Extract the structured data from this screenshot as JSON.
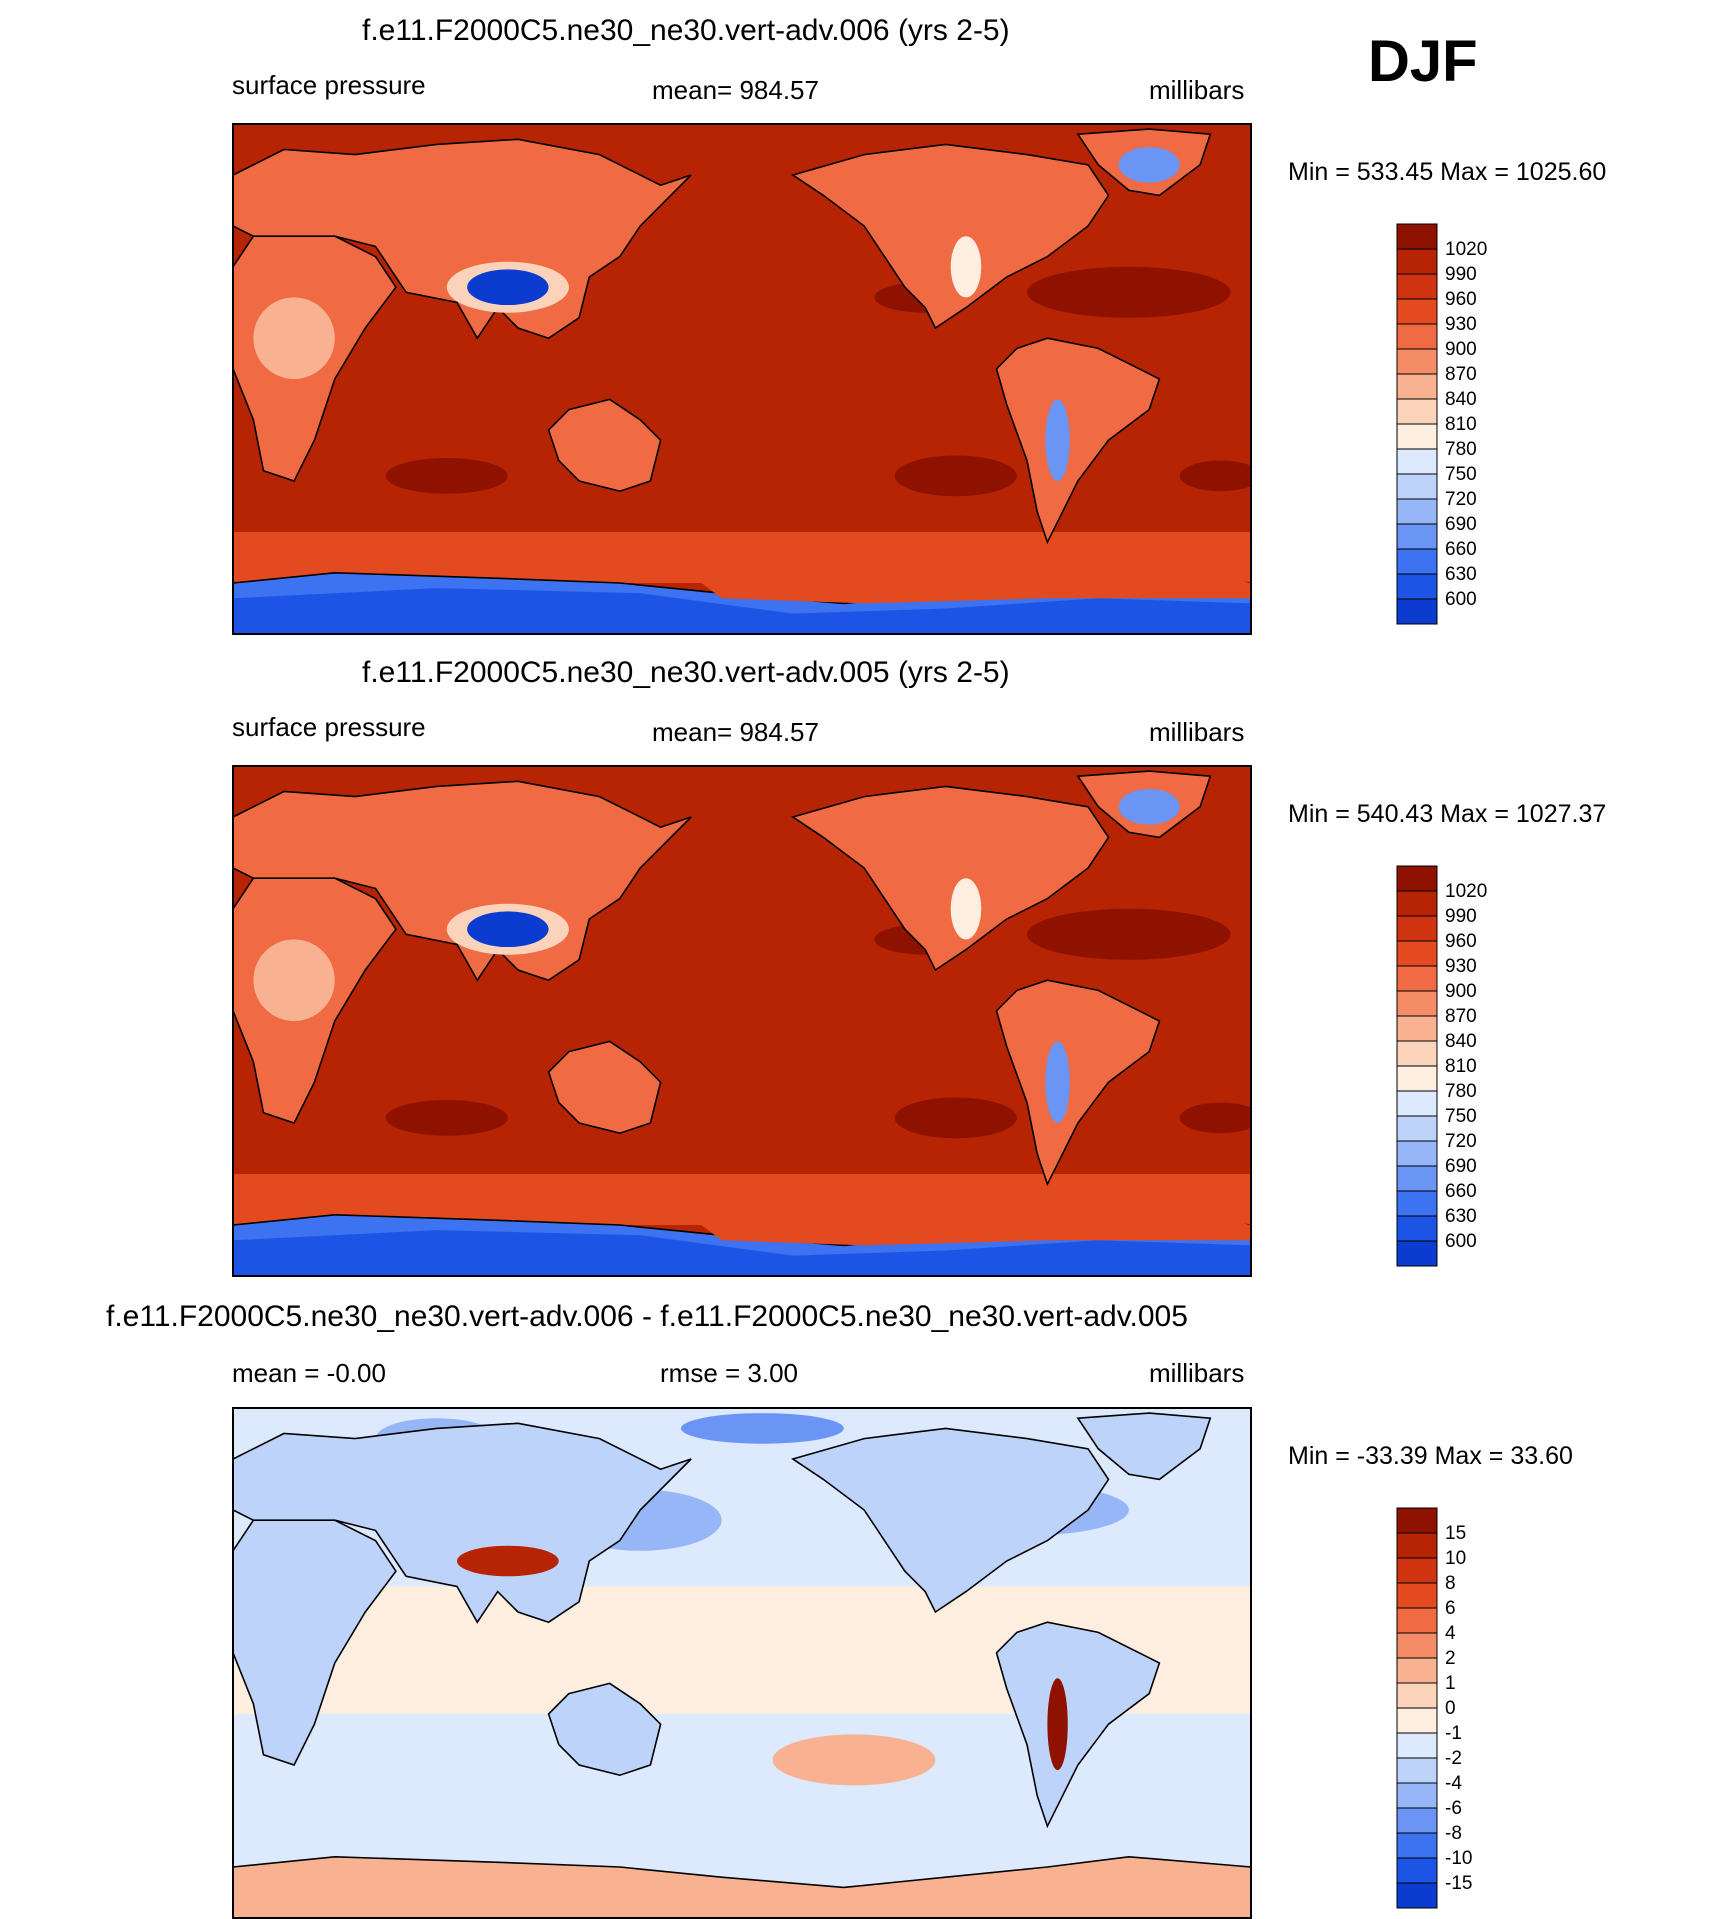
{
  "season": "DJF",
  "palettes": {
    "abs": [
      "#00007f",
      "#0a23a8",
      "#0c3bd0",
      "#1c55e6",
      "#3d72f0",
      "#6a95f5",
      "#97b6f8",
      "#bed3fa",
      "#dde9fc",
      "#fdeee0",
      "#fbd3bb",
      "#f8b292",
      "#f58c68",
      "#f06a43",
      "#e44a20",
      "#cf3310",
      "#b62404",
      "#8f1200"
    ],
    "diff": [
      "#00007f",
      "#0a23a8",
      "#0c3bd0",
      "#1c55e6",
      "#3d72f0",
      "#6a95f5",
      "#97b6f8",
      "#bed3fa",
      "#dde9fc",
      "#fdeee0",
      "#fbd3bb",
      "#f8b292",
      "#f58c68",
      "#f06a43",
      "#e44a20",
      "#cf3310",
      "#b62404",
      "#8f1200"
    ]
  },
  "chart_data": [
    {
      "type": "heatmap",
      "title": "f.e11.F2000C5.ne30_ne30.vert-adv.006 (yrs 2-5)",
      "left_label": "surface pressure",
      "center_label": "mean= 984.57",
      "right_label": "millibars",
      "minmax": "Min = 533.45 Max = 1025.60",
      "colorbar_labels": [
        "1020",
        "990",
        "960",
        "930",
        "900",
        "870",
        "840",
        "810",
        "780",
        "750",
        "720",
        "690",
        "660",
        "630",
        "600"
      ],
      "mean": 984.57,
      "min": 533.45,
      "max": 1025.6
    },
    {
      "type": "heatmap",
      "title": "f.e11.F2000C5.ne30_ne30.vert-adv.005 (yrs 2-5)",
      "left_label": "surface pressure",
      "center_label": "mean= 984.57",
      "right_label": "millibars",
      "minmax": "Min = 540.43 Max = 1027.37",
      "colorbar_labels": [
        "1020",
        "990",
        "960",
        "930",
        "900",
        "870",
        "840",
        "810",
        "780",
        "750",
        "720",
        "690",
        "660",
        "630",
        "600"
      ],
      "mean": 984.57,
      "min": 540.43,
      "max": 1027.37
    },
    {
      "type": "heatmap",
      "title": "f.e11.F2000C5.ne30_ne30.vert-adv.006 - f.e11.F2000C5.ne30_ne30.vert-adv.005",
      "left_label": "mean =  -0.00",
      "center_label": "rmse =   3.00",
      "right_label": "millibars",
      "minmax": "Min = -33.39 Max =  33.60",
      "colorbar_labels": [
        "15",
        "10",
        "8",
        "6",
        "4",
        "2",
        "1",
        "0",
        "-1",
        "-2",
        "-4",
        "-6",
        "-8",
        "-10",
        "-15"
      ],
      "mean": -0.0,
      "rmse": 3.0,
      "min": -33.39,
      "max": 33.6
    }
  ]
}
